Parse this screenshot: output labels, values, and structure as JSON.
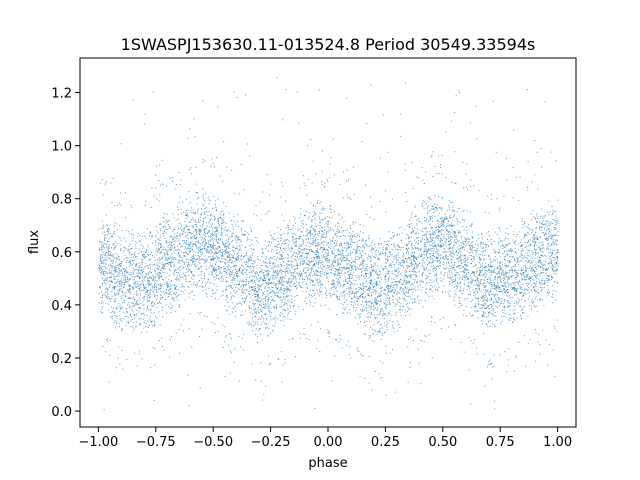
{
  "chart_data": {
    "type": "scatter",
    "title": "1SWASPJ153630.11-013524.8 Period 30549.33594s",
    "xlabel": "phase",
    "ylabel": "flux",
    "xlim": [
      -1.08,
      1.08
    ],
    "ylim": [
      -0.06,
      1.33
    ],
    "xticks": [
      -1.0,
      -0.75,
      -0.5,
      -0.25,
      0.0,
      0.25,
      0.5,
      0.75,
      1.0
    ],
    "xtick_labels": [
      "−1.00",
      "−0.75",
      "−0.50",
      "−0.25",
      "0.00",
      "0.25",
      "0.50",
      "0.75",
      "1.00"
    ],
    "yticks": [
      0.0,
      0.2,
      0.4,
      0.6,
      0.8,
      1.0,
      1.2
    ],
    "ytick_labels": [
      "0.0",
      "0.2",
      "0.4",
      "0.6",
      "0.8",
      "1.0",
      "1.2"
    ],
    "grid": false,
    "marker_color": "#1f77b4",
    "phase_range": [
      -1.0,
      1.0
    ],
    "curve": {
      "phase": [
        -1.0,
        -0.9,
        -0.8,
        -0.7,
        -0.6,
        -0.55,
        -0.5,
        -0.4,
        -0.3,
        -0.2,
        -0.1,
        -0.05,
        0.0,
        0.1,
        0.2,
        0.3,
        0.4,
        0.45,
        0.5,
        0.6,
        0.7,
        0.8,
        0.9,
        0.95,
        1.0
      ],
      "mean_flux": [
        0.56,
        0.5,
        0.49,
        0.55,
        0.63,
        0.64,
        0.62,
        0.55,
        0.46,
        0.52,
        0.58,
        0.6,
        0.58,
        0.53,
        0.46,
        0.5,
        0.59,
        0.62,
        0.62,
        0.56,
        0.48,
        0.52,
        0.57,
        0.6,
        0.61
      ]
    },
    "spread": 0.1,
    "outlier_range": [
      0.0,
      1.27
    ]
  }
}
